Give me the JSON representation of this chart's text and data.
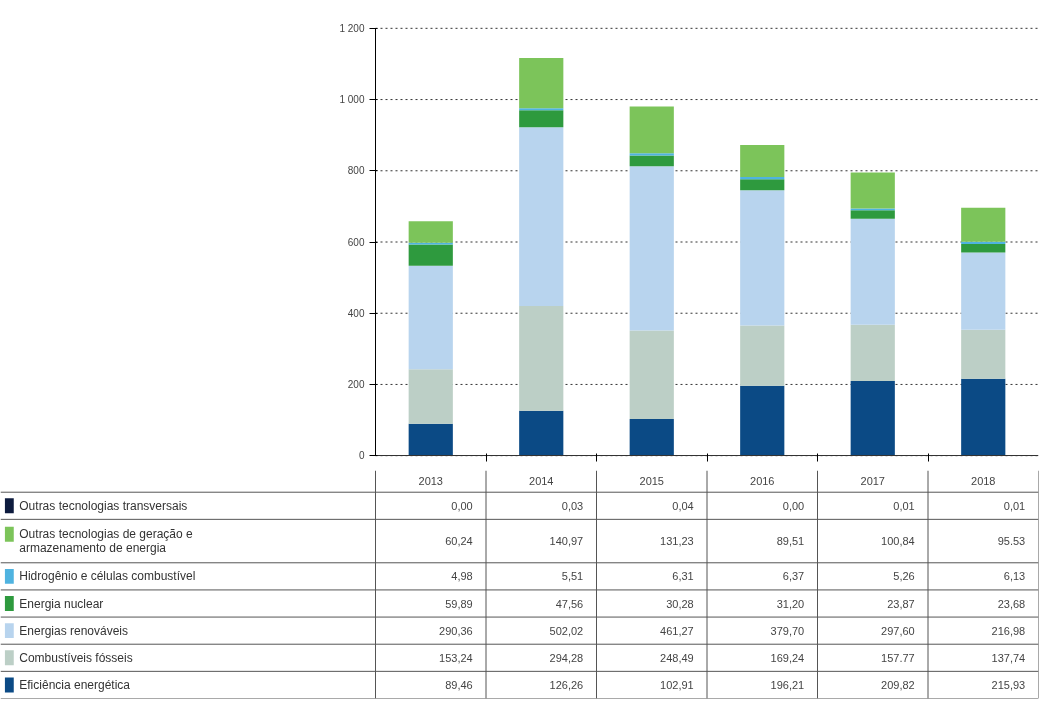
{
  "chart_data": {
    "type": "bar",
    "stacked": true,
    "categories": [
      "2013",
      "2014",
      "2015",
      "2016",
      "2017",
      "2018"
    ],
    "series": [
      {
        "name": "Eficiência energética",
        "color": "#0b4a85",
        "values": [
          89.46,
          126.26,
          102.91,
          196.21,
          209.82,
          215.93
        ],
        "value_labels": [
          "89,46",
          "126,26",
          "102,91",
          "196,21",
          "209,82",
          "215,93"
        ]
      },
      {
        "name": "Combustíveis fósseis",
        "color": "#bccfc6",
        "values": [
          153.24,
          294.28,
          248.49,
          169.24,
          157.77,
          137.74
        ],
        "value_labels": [
          "153,24",
          "294,28",
          "248,49",
          "169,24",
          "157.77",
          "137,74"
        ]
      },
      {
        "name": "Energias renováveis",
        "color": "#b8d4ee",
        "values": [
          290.36,
          502.02,
          461.27,
          379.7,
          297.6,
          216.98
        ],
        "value_labels": [
          "290,36",
          "502,02",
          "461,27",
          "379,70",
          "297,60",
          "216,98"
        ]
      },
      {
        "name": "Energia nuclear",
        "color": "#2e9a3e",
        "values": [
          59.89,
          47.56,
          30.28,
          31.2,
          23.87,
          23.68
        ],
        "value_labels": [
          "59,89",
          "47,56",
          "30,28",
          "31,20",
          "23,87",
          "23,68"
        ]
      },
      {
        "name": "Hidrogênio e células combustível",
        "color": "#4fb3e0",
        "values": [
          4.98,
          5.51,
          6.31,
          6.37,
          5.26,
          6.13
        ],
        "value_labels": [
          "4,98",
          "5,51",
          "6,31",
          "6,37",
          "5,26",
          "6,13"
        ]
      },
      {
        "name": "Outras tecnologias de geração e armazenamento de energia",
        "color": "#7cc45a",
        "values": [
          60.24,
          140.97,
          131.23,
          89.51,
          100.84,
          95.53
        ],
        "value_labels": [
          "60,24",
          "140,97",
          "131,23",
          "89,51",
          "100,84",
          "95.53"
        ]
      },
      {
        "name": "Outras tecnologias transversais",
        "color": "#0d1b3e",
        "values": [
          0.0,
          0.03,
          0.04,
          0.0,
          0.01,
          0.01
        ],
        "value_labels": [
          "0,00",
          "0,03",
          "0,04",
          "0,00",
          "0,01",
          "0,01"
        ]
      }
    ],
    "ylim": [
      0,
      1200
    ],
    "yticks": [
      0,
      200,
      400,
      600,
      800,
      {
        "value": 1000,
        "label": "1 000"
      },
      {
        "value": 1200,
        "label": "1 200"
      }
    ],
    "grid": "y",
    "legend": "bottom"
  }
}
